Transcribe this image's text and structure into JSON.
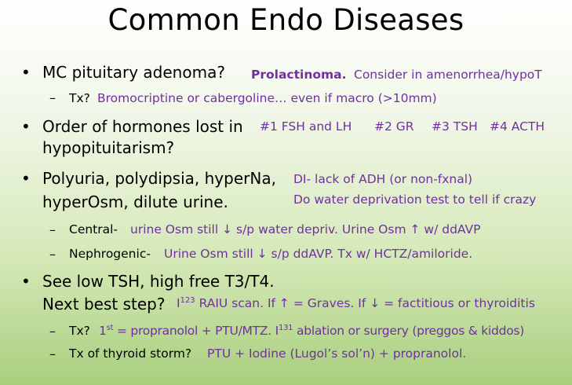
{
  "slide": {
    "title": "Common Endo Diseases"
  },
  "bullet_glyph": "•",
  "dash_glyph": "–",
  "items": [
    {
      "q": "MC pituitary adenoma?",
      "a_bold": "Prolactinoma.",
      "a_rest": "Consider in amenorrhea/hypoT",
      "sub": [
        {
          "q": "Tx?",
          "a": "Bromocriptine or cabergoline… even if macro (>10mm)"
        }
      ]
    },
    {
      "q_line1": "Order of hormones lost in",
      "q_line2": "hypopituitarism?",
      "answers": [
        "#1 FSH and LH",
        "#2 GR",
        "#3 TSH",
        "#4 ACTH"
      ]
    },
    {
      "q_line1": "Polyuria, polydipsia, hyperNa,",
      "q_line2": "hyperOsm, dilute urine.",
      "a_line1": "DI- lack of ADH (or non-fxnal)",
      "a_line2": "Do water deprivation test to tell if crazy",
      "sub": [
        {
          "q": "Central-",
          "a": "urine Osm still ↓ s/p water depriv. Urine Osm ↑ w/ ddAVP"
        },
        {
          "q": "Nephrogenic-",
          "a": "Urine Osm still ↓ s/p ddAVP. Tx w/ HCTZ/amiloride."
        }
      ]
    },
    {
      "q_line1": "See low TSH, high free T3/T4.",
      "q_line2": "Next best step?",
      "a_iso": "I",
      "a_iso_sup": "123",
      "a_rest": "RAIU scan. If ↑ = Graves. If ↓ = factitious or thyroiditis",
      "sub": [
        {
          "q": "Tx?",
          "a_first": "1",
          "a_first_sup": "st",
          "a_mid": "= propranolol + PTU/MTZ. I",
          "a_mid_sup": "131",
          "a_end": "ablation or surgery (preggos & kiddos)"
        },
        {
          "q": "Tx of thyroid storm?",
          "a": "PTU + Iodine (Lugol’s sol’n) + propranolol."
        }
      ]
    }
  ]
}
